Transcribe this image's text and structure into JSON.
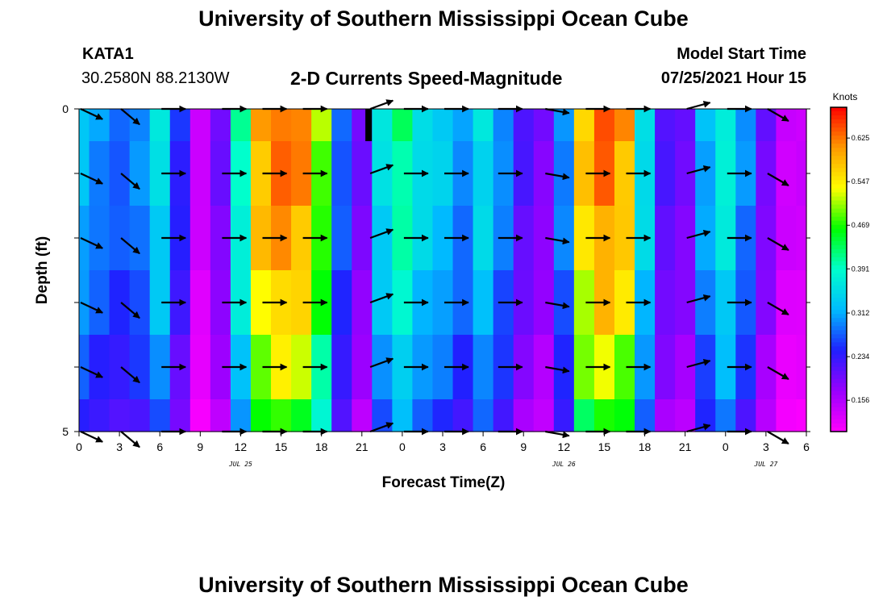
{
  "page": {
    "title_top": "University of Southern Mississippi Ocean Cube",
    "title_bottom": "University of Southern Mississippi Ocean Cube",
    "station": "KATA1",
    "coords": "30.2580N  88.2130W",
    "model_start_label": "Model Start Time",
    "model_start_value": "07/25/2021 Hour 15"
  },
  "chart_data": {
    "type": "heatmap",
    "title": "2-D Currents Speed-Magnitude",
    "xlabel": "Forecast Time(Z)",
    "ylabel": "Depth (ft)",
    "colorbar_unit": "Knots",
    "x_hours": [
      0,
      1.5,
      3,
      4.5,
      6,
      7.5,
      9,
      10.5,
      12,
      13.5,
      15,
      16.5,
      18,
      19.5,
      21,
      22.5,
      24,
      25.5,
      27,
      28.5,
      30,
      31.5,
      33,
      34.5,
      36,
      37.5,
      39,
      40.5,
      42,
      43.5,
      45,
      46.5,
      48,
      49.5,
      51,
      52.5,
      54
    ],
    "xlim": [
      0,
      54
    ],
    "x_tick_values": [
      0,
      3,
      6,
      9,
      12,
      15,
      18,
      21,
      24,
      27,
      30,
      33,
      36,
      39,
      42,
      45,
      48,
      51,
      54
    ],
    "x_tick_labels": [
      "0",
      "3",
      "6",
      "9",
      "12",
      "15",
      "18",
      "21",
      "0",
      "3",
      "6",
      "9",
      "12",
      "15",
      "18",
      "21",
      "0",
      "3",
      "6"
    ],
    "date_labels": [
      {
        "hour": 12,
        "label": "JUL 25"
      },
      {
        "hour": 36,
        "label": "JUL 26"
      },
      {
        "hour": 51,
        "label": "JUL 27"
      }
    ],
    "ylim": [
      0,
      5
    ],
    "y_tick_labels": [
      "0",
      "5"
    ],
    "depths": [
      0,
      1,
      2,
      3,
      4,
      5
    ],
    "colorbar": {
      "min": 0.1,
      "max": 0.68,
      "tick_values": [
        0.625,
        0.547,
        0.469,
        0.391,
        0.312,
        0.234,
        0.156
      ],
      "tick_labels": [
        "0.625",
        "0.547",
        "0.469",
        "0.391",
        "0.312",
        "0.234",
        "0.156"
      ],
      "colors": [
        "#ff00ff",
        "#9900ff",
        "#2020ff",
        "#00bbff",
        "#00ffcc",
        "#00ff00",
        "#ffff00",
        "#ff9900",
        "#ff0000"
      ]
    },
    "speed_by_time": [
      0.33,
      0.3,
      0.28,
      0.3,
      0.36,
      0.25,
      0.14,
      0.2,
      0.4,
      0.6,
      0.64,
      0.62,
      0.5,
      0.28,
      0.2,
      0.36,
      0.42,
      0.36,
      0.34,
      0.3,
      0.36,
      0.3,
      0.22,
      0.19,
      0.3,
      0.58,
      0.64,
      0.6,
      0.36,
      0.22,
      0.2,
      0.32,
      0.38,
      0.3,
      0.2,
      0.14,
      0.14
    ],
    "depth_factor": [
      1.0,
      0.98,
      0.95,
      0.9,
      0.83,
      0.75
    ],
    "vector_hours": [
      0,
      3,
      6,
      10.5,
      13.5,
      16.5,
      21.5,
      24,
      27,
      31,
      34.5,
      37.5,
      40.5,
      45,
      48,
      51
    ],
    "vector_angles_deg": [
      -25,
      -40,
      0,
      0,
      0,
      0,
      20,
      0,
      0,
      0,
      -10,
      0,
      0,
      15,
      0,
      -30
    ],
    "surface_anomaly_hour": 21.5
  }
}
